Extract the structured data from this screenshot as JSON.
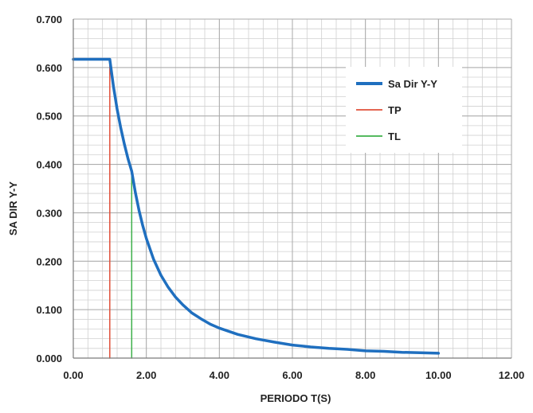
{
  "chart_data": {
    "type": "line",
    "xlabel": "PERIODO T(S)",
    "ylabel": "SA DIR Y-Y",
    "xlim": [
      0,
      12
    ],
    "ylim": [
      0,
      0.7
    ],
    "x_ticks": [
      "0.00",
      "2.00",
      "4.00",
      "6.00",
      "8.00",
      "10.00",
      "12.00"
    ],
    "y_ticks": [
      "0.000",
      "0.100",
      "0.200",
      "0.300",
      "0.400",
      "0.500",
      "0.600",
      "0.700"
    ],
    "x_tick_values": [
      0,
      2,
      4,
      6,
      8,
      10,
      12
    ],
    "y_tick_values": [
      0,
      0.1,
      0.2,
      0.3,
      0.4,
      0.5,
      0.6,
      0.7
    ],
    "grid": true,
    "minor_grid": true,
    "legend_position": "right-top",
    "series": [
      {
        "name": "Sa Dir Y-Y",
        "color": "#1f6fbf",
        "x": [
          0,
          0.25,
          0.5,
          0.75,
          1.0,
          1.1,
          1.2,
          1.3,
          1.4,
          1.5,
          1.6,
          1.7,
          1.8,
          1.9,
          2.0,
          2.2,
          2.4,
          2.6,
          2.8,
          3.0,
          3.25,
          3.5,
          3.75,
          4.0,
          4.5,
          5.0,
          5.5,
          6.0,
          6.5,
          7.0,
          7.5,
          8.0,
          8.5,
          9.0,
          9.5,
          10.0
        ],
        "y": [
          0.617,
          0.617,
          0.617,
          0.617,
          0.617,
          0.561,
          0.514,
          0.475,
          0.441,
          0.411,
          0.386,
          0.342,
          0.305,
          0.274,
          0.247,
          0.204,
          0.171,
          0.146,
          0.126,
          0.11,
          0.093,
          0.081,
          0.07,
          0.062,
          0.049,
          0.04,
          0.033,
          0.027,
          0.023,
          0.02,
          0.018,
          0.015,
          0.014,
          0.012,
          0.011,
          0.01
        ]
      },
      {
        "name": "TP",
        "color": "#e0503a",
        "x": [
          1.0,
          1.0
        ],
        "y": [
          0,
          0.617
        ]
      },
      {
        "name": "TL",
        "color": "#3db04a",
        "x": [
          1.6,
          1.6
        ],
        "y": [
          0,
          0.386
        ]
      }
    ]
  }
}
